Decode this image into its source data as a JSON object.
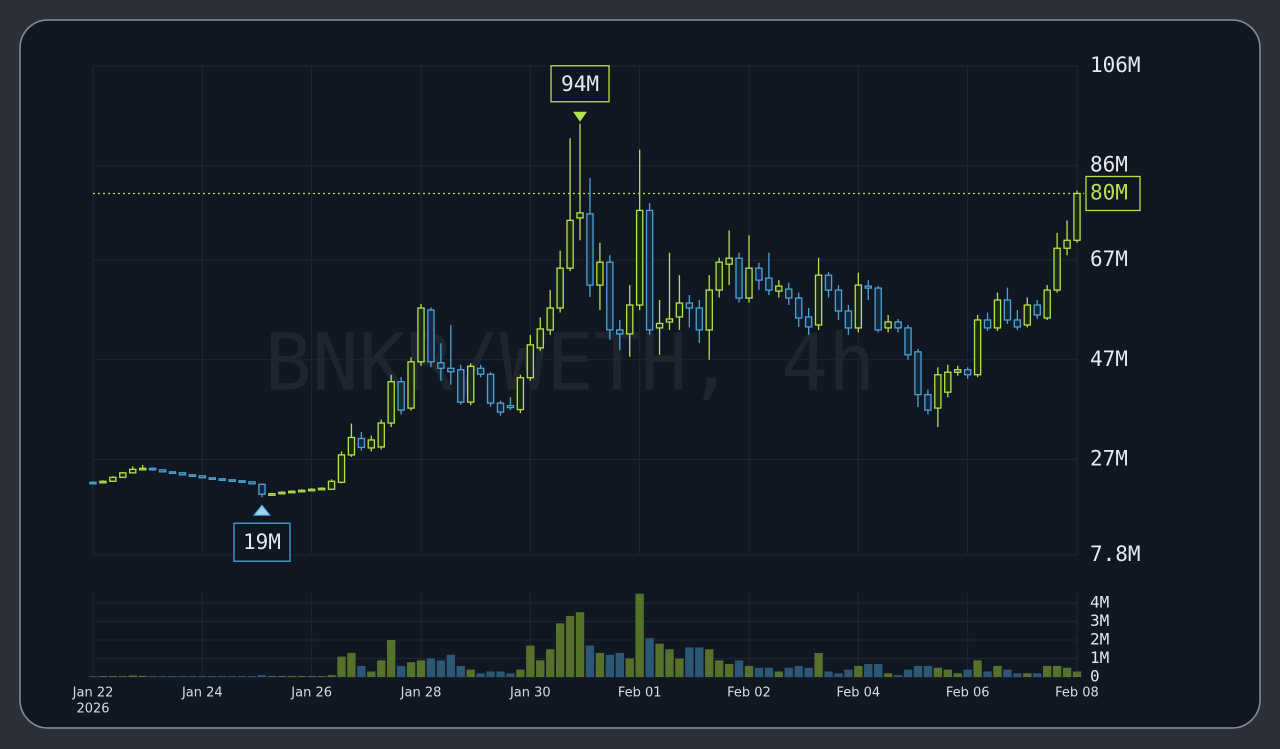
{
  "chart_data": {
    "type": "candlestick",
    "watermark": "BNKR/WETH, 4h",
    "categories": [
      "Jan 22",
      null,
      null,
      null,
      null,
      null,
      null,
      null,
      null,
      null,
      null,
      "Jan 24",
      null,
      null,
      null,
      null,
      null,
      null,
      null,
      null,
      null,
      null,
      "Jan 26",
      null,
      null,
      null,
      null,
      null,
      null,
      null,
      null,
      null,
      null,
      "Jan 28",
      null,
      null,
      null,
      null,
      null,
      null,
      null,
      null,
      null,
      null,
      "Jan 30",
      null,
      null,
      null,
      null,
      null,
      null,
      null,
      null,
      null,
      null,
      "Feb 01",
      null,
      null,
      null,
      null,
      null,
      null,
      null,
      null,
      null,
      null,
      "Feb 02",
      null,
      null,
      null,
      null,
      null,
      null,
      null,
      null,
      null,
      null,
      "Feb 04",
      null,
      null,
      null,
      null,
      null,
      null,
      null,
      null,
      null,
      null,
      "Feb 06",
      null,
      null,
      null,
      null,
      null,
      null,
      null,
      null,
      null,
      null,
      "Feb 08"
    ],
    "year": "2026",
    "open": [
      22.4,
      22.3,
      22.6,
      23.4,
      24.3,
      25.0,
      25.2,
      24.9,
      24.5,
      24.3,
      23.9,
      23.7,
      23.3,
      23.1,
      22.9,
      22.7,
      22.5,
      22.0,
      20.0,
      20.1,
      20.4,
      20.6,
      20.8,
      21.0,
      21.0,
      22.4,
      27.9,
      31.2,
      29.3,
      29.5,
      34.3,
      42.6,
      37.3,
      46.6,
      57.0,
      46.4,
      45.3,
      45.0,
      38.5,
      45.3,
      44.1,
      38.3,
      37.8,
      37.0,
      43.4,
      49.4,
      53.0,
      57.4,
      65.4,
      75.5,
      76.3,
      62.0,
      66.6,
      53.0,
      52.2,
      58.0,
      77.0,
      53.4,
      54.6,
      55.6,
      58.4,
      57.4,
      53.0,
      61.0,
      66.2,
      67.4,
      59.4,
      65.4,
      63.4,
      60.8,
      61.2,
      59.4,
      55.6,
      54.0,
      64.0,
      61.0,
      56.8,
      53.4,
      61.8,
      61.4,
      53.4,
      54.6,
      53.4,
      48.6,
      40.0,
      37.3,
      40.5,
      44.5,
      45.0,
      44.0,
      55.0,
      53.4,
      59.0,
      55.0,
      54.0,
      58.0,
      55.4,
      61.0,
      69.4,
      71.0
    ],
    "high": [
      22.6,
      22.8,
      23.6,
      24.5,
      25.6,
      25.9,
      25.3,
      25.0,
      24.6,
      24.4,
      24.0,
      23.8,
      23.4,
      23.2,
      23.0,
      22.8,
      22.6,
      22.1,
      20.3,
      20.6,
      20.8,
      21.0,
      21.2,
      21.4,
      23.0,
      28.6,
      34.2,
      32.5,
      31.8,
      35.0,
      44.0,
      43.5,
      47.5,
      58.2,
      57.5,
      50.3,
      54.0,
      46.0,
      46.3,
      46.0,
      44.5,
      38.8,
      39.5,
      44.0,
      52.0,
      55.5,
      61.0,
      68.9,
      91.5,
      94.4,
      83.5,
      70.5,
      68.0,
      55.0,
      62.0,
      89.2,
      78.5,
      59.0,
      68.5,
      64.0,
      60.0,
      59.0,
      64.0,
      67.5,
      73.0,
      68.5,
      72.0,
      66.5,
      68.5,
      63.0,
      62.5,
      60.5,
      57.4,
      67.5,
      64.6,
      62.0,
      58.0,
      64.5,
      63.0,
      61.8,
      56.0,
      55.2,
      54.0,
      49.2,
      41.0,
      45.5,
      46.0,
      45.8,
      45.5,
      56.0,
      56.5,
      60.5,
      61.5,
      57.0,
      59.5,
      59.0,
      62.0,
      72.5,
      75.0,
      81.0
    ],
    "low": [
      22.1,
      22.2,
      22.5,
      23.3,
      24.2,
      24.8,
      24.7,
      24.4,
      24.2,
      23.8,
      23.6,
      23.2,
      23.0,
      22.8,
      22.6,
      22.4,
      22.0,
      19.4,
      19.8,
      20.0,
      20.3,
      20.5,
      20.7,
      20.9,
      20.9,
      22.2,
      27.5,
      28.8,
      28.6,
      29.0,
      33.5,
      36.0,
      36.8,
      45.8,
      45.5,
      42.8,
      42.0,
      38.0,
      37.9,
      43.5,
      37.6,
      35.8,
      36.9,
      36.3,
      42.8,
      48.8,
      52.0,
      56.5,
      64.8,
      71.0,
      59.6,
      57.0,
      51.0,
      49.0,
      47.6,
      57.0,
      52.0,
      48.0,
      53.0,
      53.0,
      53.5,
      50.4,
      47.0,
      59.5,
      62.0,
      58.5,
      58.5,
      61.0,
      60.0,
      59.5,
      58.0,
      53.6,
      52.0,
      53.0,
      59.5,
      55.0,
      52.0,
      52.5,
      59.0,
      52.5,
      52.5,
      52.5,
      47.0,
      37.5,
      36.0,
      33.5,
      39.5,
      43.8,
      43.2,
      43.5,
      52.8,
      52.8,
      54.2,
      53.0,
      53.5,
      55.2,
      55.0,
      60.5,
      68.0,
      70.5
    ],
    "close": [
      22.3,
      22.6,
      23.4,
      24.3,
      25.0,
      25.2,
      24.9,
      24.5,
      24.3,
      23.9,
      23.7,
      23.3,
      23.1,
      22.9,
      22.7,
      22.5,
      22.1,
      20.0,
      20.1,
      20.4,
      20.6,
      20.8,
      21.0,
      21.2,
      22.6,
      27.9,
      31.4,
      29.4,
      30.9,
      34.3,
      42.6,
      36.9,
      46.6,
      57.4,
      46.6,
      45.3,
      44.6,
      38.5,
      45.7,
      44.1,
      38.3,
      36.5,
      37.4,
      43.4,
      50.0,
      53.2,
      57.4,
      65.4,
      75.0,
      76.5,
      62.0,
      66.6,
      53.0,
      52.2,
      58.0,
      77.0,
      53.0,
      54.3,
      55.2,
      58.4,
      57.4,
      53.0,
      61.0,
      66.6,
      67.4,
      59.4,
      65.4,
      63.0,
      61.0,
      61.8,
      59.4,
      55.4,
      53.6,
      64.0,
      61.0,
      56.8,
      53.4,
      62.0,
      61.4,
      53.0,
      54.6,
      53.4,
      48.0,
      40.0,
      36.9,
      44.0,
      44.5,
      45.0,
      44.0,
      55.0,
      53.4,
      59.0,
      55.0,
      53.6,
      58.0,
      56.0,
      61.0,
      69.4,
      71.0,
      80.4
    ],
    "volume": [
      0.05,
      0.05,
      0.05,
      0.05,
      0.08,
      0.06,
      0.05,
      0.05,
      0.05,
      0.05,
      0.05,
      0.05,
      0.05,
      0.05,
      0.05,
      0.05,
      0.05,
      0.1,
      0.05,
      0.05,
      0.05,
      0.05,
      0.05,
      0.05,
      0.1,
      1.1,
      1.3,
      0.6,
      0.3,
      0.9,
      2.0,
      0.6,
      0.8,
      0.9,
      1.0,
      0.9,
      1.2,
      0.6,
      0.4,
      0.2,
      0.3,
      0.3,
      0.2,
      0.4,
      1.7,
      0.9,
      1.5,
      2.9,
      3.3,
      3.5,
      1.7,
      1.3,
      1.2,
      1.3,
      1.0,
      4.5,
      2.1,
      1.8,
      1.5,
      1.0,
      1.6,
      1.6,
      1.5,
      0.9,
      0.7,
      0.9,
      0.6,
      0.5,
      0.5,
      0.3,
      0.5,
      0.6,
      0.5,
      1.3,
      0.3,
      0.2,
      0.4,
      0.6,
      0.7,
      0.7,
      0.2,
      0.1,
      0.4,
      0.6,
      0.6,
      0.5,
      0.4,
      0.2,
      0.4,
      0.9,
      0.3,
      0.6,
      0.4,
      0.2,
      0.2,
      0.2,
      0.6,
      0.6,
      0.5,
      0.3
    ],
    "up_color": "#b4e24a",
    "down_color": "#4aa3d4",
    "up_volume_color": "#56712a",
    "down_volume_color": "#2c5775",
    "ylim": [
      7.8,
      106
    ],
    "yticks": [
      {
        "value": 106,
        "label": "106M"
      },
      {
        "value": 86,
        "label": "86M"
      },
      {
        "value": 67,
        "label": "67M"
      },
      {
        "value": 47,
        "label": "47M"
      },
      {
        "value": 27,
        "label": "27M"
      },
      {
        "value": 7.8,
        "label": "7.8M"
      }
    ],
    "volume_ylim": [
      0,
      4
    ],
    "volume_yticks": [
      {
        "value": 4,
        "label": "4M"
      },
      {
        "value": 3,
        "label": "3M"
      },
      {
        "value": 2,
        "label": "2M"
      },
      {
        "value": 1,
        "label": "1M"
      },
      0
    ],
    "max_label": "94M",
    "min_label": "19M",
    "last_label": "80M",
    "grid": true
  }
}
